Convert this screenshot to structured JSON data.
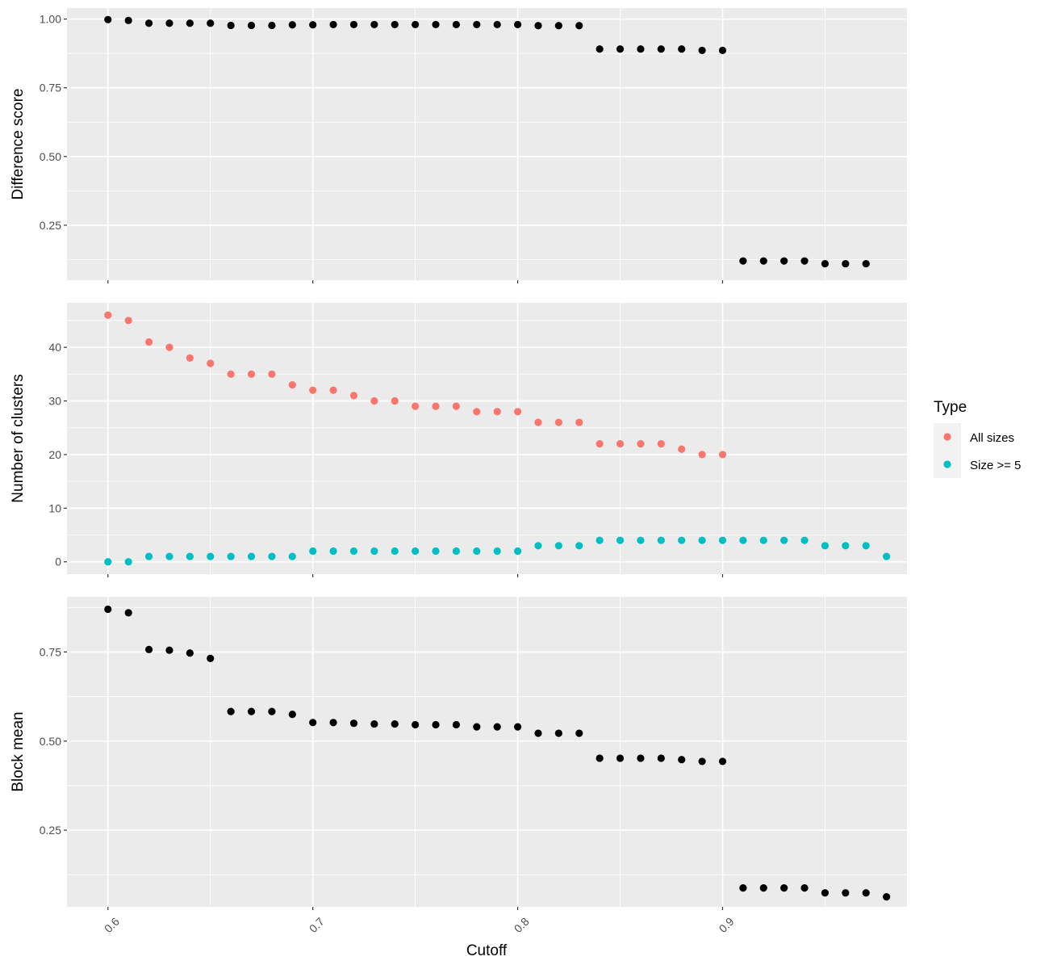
{
  "chart_data": {
    "type": "scatter",
    "xlabel": "Cutoff",
    "xlim": [
      0.58,
      0.99
    ],
    "xticks": [
      0.6,
      0.7,
      0.8,
      0.9
    ],
    "xtick_labels": [
      "0.6",
      "0.7",
      "0.8",
      "0.9"
    ],
    "grid": true,
    "legend": {
      "title": "Type",
      "position": "right",
      "entries": [
        {
          "label": "All sizes",
          "color": "#F8766D"
        },
        {
          "label": "Size >= 5",
          "color": "#00BFC4"
        }
      ]
    },
    "panels": [
      {
        "ylabel": "Difference score",
        "ylim": [
          0.05,
          1.04
        ],
        "yticks": [
          0.25,
          0.5,
          0.75,
          1.0
        ],
        "ytick_labels": [
          "0.25",
          "0.50",
          "0.75",
          "1.00"
        ],
        "series": [
          {
            "color": "#000000",
            "x": [
              0.6,
              0.61,
              0.62,
              0.63,
              0.64,
              0.65,
              0.66,
              0.67,
              0.68,
              0.69,
              0.7,
              0.71,
              0.72,
              0.73,
              0.74,
              0.75,
              0.76,
              0.77,
              0.78,
              0.79,
              0.8,
              0.81,
              0.82,
              0.83,
              0.84,
              0.85,
              0.86,
              0.87,
              0.88,
              0.89,
              0.9,
              0.91,
              0.92,
              0.93,
              0.94,
              0.95,
              0.96,
              0.97
            ],
            "y": [
              0.998,
              0.995,
              0.985,
              0.985,
              0.985,
              0.985,
              0.977,
              0.977,
              0.977,
              0.979,
              0.979,
              0.98,
              0.98,
              0.98,
              0.98,
              0.98,
              0.98,
              0.98,
              0.98,
              0.98,
              0.98,
              0.976,
              0.976,
              0.976,
              0.891,
              0.891,
              0.891,
              0.891,
              0.891,
              0.886,
              0.886,
              0.12,
              0.12,
              0.12,
              0.12,
              0.11,
              0.11,
              0.11
            ]
          }
        ]
      },
      {
        "ylabel": "Number of clusters",
        "ylim": [
          -2.3,
          48.3
        ],
        "yticks": [
          0,
          10,
          20,
          30,
          40
        ],
        "ytick_labels": [
          "0",
          "10",
          "20",
          "30",
          "40"
        ],
        "series": [
          {
            "name": "All sizes",
            "color": "#F8766D",
            "x": [
              0.6,
              0.61,
              0.62,
              0.63,
              0.64,
              0.65,
              0.66,
              0.67,
              0.68,
              0.69,
              0.7,
              0.71,
              0.72,
              0.73,
              0.74,
              0.75,
              0.76,
              0.77,
              0.78,
              0.79,
              0.8,
              0.81,
              0.82,
              0.83,
              0.84,
              0.85,
              0.86,
              0.87,
              0.88,
              0.89,
              0.9
            ],
            "y": [
              46,
              45,
              41,
              40,
              38,
              37,
              35,
              35,
              35,
              33,
              32,
              32,
              31,
              30,
              30,
              29,
              29,
              29,
              28,
              28,
              28,
              26,
              26,
              26,
              22,
              22,
              22,
              22,
              21,
              20,
              20
            ]
          },
          {
            "name": "Size >= 5",
            "color": "#00BFC4",
            "x": [
              0.6,
              0.61,
              0.62,
              0.63,
              0.64,
              0.65,
              0.66,
              0.67,
              0.68,
              0.69,
              0.7,
              0.71,
              0.72,
              0.73,
              0.74,
              0.75,
              0.76,
              0.77,
              0.78,
              0.79,
              0.8,
              0.81,
              0.82,
              0.83,
              0.84,
              0.85,
              0.86,
              0.87,
              0.88,
              0.89,
              0.9,
              0.91,
              0.92,
              0.93,
              0.94,
              0.95,
              0.96,
              0.97,
              0.98
            ],
            "y": [
              0,
              0,
              1,
              1,
              1,
              1,
              1,
              1,
              1,
              1,
              2,
              2,
              2,
              2,
              2,
              2,
              2,
              2,
              2,
              2,
              2,
              3,
              3,
              3,
              4,
              4,
              4,
              4,
              4,
              4,
              4,
              4,
              4,
              4,
              4,
              3,
              3,
              3,
              1
            ]
          }
        ]
      },
      {
        "ylabel": "Block mean",
        "ylim": [
          0.035,
          0.905
        ],
        "yticks": [
          0.25,
          0.5,
          0.75
        ],
        "ytick_labels": [
          "0.25",
          "0.50",
          "0.75"
        ],
        "series": [
          {
            "color": "#000000",
            "x": [
              0.6,
              0.61,
              0.62,
              0.63,
              0.64,
              0.65,
              0.66,
              0.67,
              0.68,
              0.69,
              0.7,
              0.71,
              0.72,
              0.73,
              0.74,
              0.75,
              0.76,
              0.77,
              0.78,
              0.79,
              0.8,
              0.81,
              0.82,
              0.83,
              0.84,
              0.85,
              0.86,
              0.87,
              0.88,
              0.89,
              0.9,
              0.91,
              0.92,
              0.93,
              0.94,
              0.95,
              0.96,
              0.97,
              0.98
            ],
            "y": [
              0.87,
              0.86,
              0.757,
              0.755,
              0.747,
              0.732,
              0.583,
              0.583,
              0.583,
              0.575,
              0.552,
              0.552,
              0.55,
              0.548,
              0.548,
              0.546,
              0.546,
              0.546,
              0.54,
              0.54,
              0.54,
              0.522,
              0.522,
              0.522,
              0.452,
              0.452,
              0.452,
              0.452,
              0.448,
              0.443,
              0.443,
              0.088,
              0.088,
              0.088,
              0.088,
              0.074,
              0.074,
              0.074,
              0.063
            ]
          }
        ]
      }
    ]
  }
}
